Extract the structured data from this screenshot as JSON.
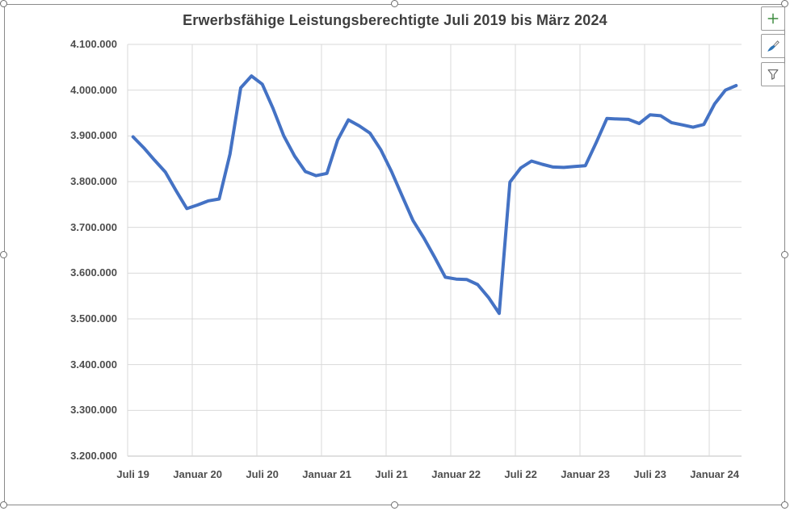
{
  "chart_data": {
    "type": "line",
    "title": "Erwerbsfähige Leistungsberechtigte Juli 2019 bis März 2024",
    "x_start": "Juli 2019",
    "x_end": "März 2024",
    "x_tick_labels": [
      "Juli 19",
      "Januar 20",
      "Juli 20",
      "Januar 21",
      "Juli 21",
      "Januar 22",
      "Juli 22",
      "Januar 23",
      "Juli 23",
      "Januar 24"
    ],
    "x_tick_interval": 6,
    "y_tick_labels": [
      "4.100.000",
      "4.000.000",
      "3.900.000",
      "3.800.000",
      "3.700.000",
      "3.600.000",
      "3.500.000",
      "3.400.000",
      "3.300.000",
      "3.200.000"
    ],
    "ylim": [
      3200000,
      4100000
    ],
    "y_tick_step": 100000,
    "grid": "on",
    "legend": "none",
    "series": [
      {
        "name": "Erwerbsfähige Leistungsberechtigte",
        "color": "#4472C4",
        "values": [
          3898000,
          3874000,
          3847000,
          3821000,
          3780000,
          3741000,
          3749000,
          3758000,
          3762000,
          3860000,
          4005000,
          4031000,
          4013000,
          3960000,
          3900000,
          3856000,
          3822000,
          3813000,
          3818000,
          3891000,
          3935000,
          3922000,
          3906000,
          3870000,
          3822000,
          3768000,
          3715000,
          3677000,
          3635000,
          3591000,
          3587000,
          3586000,
          3575000,
          3547000,
          3512000,
          3799000,
          3830000,
          3845000,
          3838000,
          3832000,
          3831000,
          3833000,
          3835000,
          3885000,
          3938000,
          3937000,
          3936000,
          3927000,
          3946000,
          3944000,
          3929000,
          3924000,
          3919000,
          3925000,
          3970000,
          4000000,
          4010000
        ]
      }
    ],
    "gridline_color": "#D9D9D9",
    "axis_line_color": "#BFBFBF",
    "label_color": "#4d4d4d"
  },
  "toolbar": {
    "buttons": [
      {
        "icon": "plus-icon",
        "color": "#3a8a3c"
      },
      {
        "icon": "brush-icon",
        "color": "#2E75B6"
      },
      {
        "icon": "funnel-icon",
        "color": "#666666"
      }
    ]
  }
}
